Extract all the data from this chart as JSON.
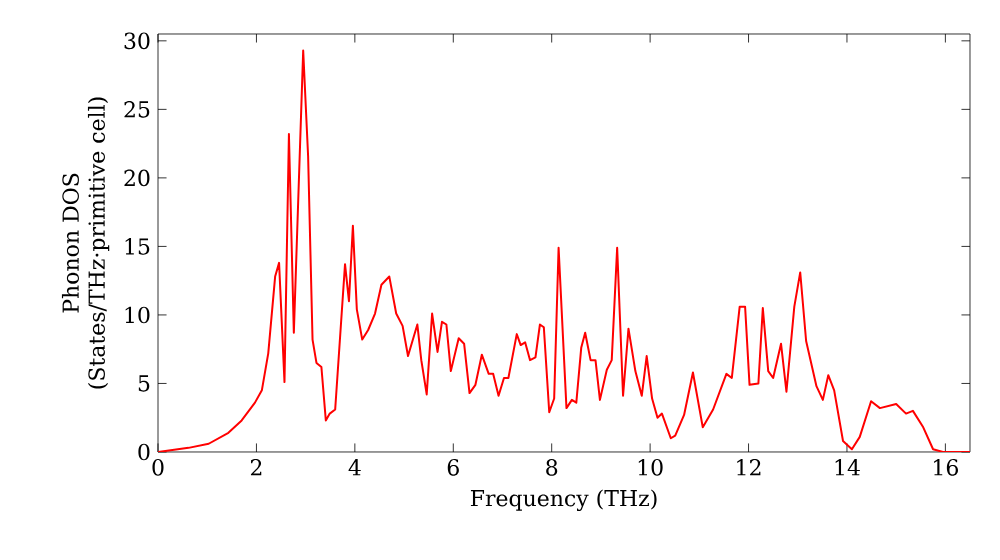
{
  "chart_data": {
    "type": "line",
    "xlabel": "Frequency (THz)",
    "ylabel": "Phonon DOS\n(States/THz·primitive cell)",
    "xlim": [
      0,
      16.5
    ],
    "ylim": [
      0,
      30.5
    ],
    "xticks": [
      0,
      2,
      4,
      6,
      8,
      10,
      12,
      14,
      16
    ],
    "yticks": [
      0,
      5,
      10,
      15,
      20,
      25,
      30
    ],
    "marker": "none",
    "line_style": "solid",
    "series": [
      {
        "color": "#ff0000",
        "x": [
          0,
          0.62,
          1.03,
          1.43,
          1.7,
          1.97,
          2.11,
          2.24,
          2.38,
          2.46,
          2.57,
          2.66,
          2.76,
          2.95,
          3.05,
          3.14,
          3.22,
          3.32,
          3.41,
          3.49,
          3.6,
          3.8,
          3.88,
          3.96,
          4.04,
          4.15,
          4.27,
          4.41,
          4.54,
          4.7,
          4.84,
          4.97,
          5.08,
          5.27,
          5.35,
          5.46,
          5.57,
          5.68,
          5.77,
          5.86,
          5.95,
          6.11,
          6.22,
          6.33,
          6.45,
          6.58,
          6.72,
          6.81,
          6.92,
          7.03,
          7.12,
          7.29,
          7.37,
          7.46,
          7.56,
          7.67,
          7.76,
          7.84,
          7.95,
          8.05,
          8.14,
          8.3,
          8.41,
          8.5,
          8.6,
          8.68,
          8.79,
          8.89,
          8.98,
          9.12,
          9.22,
          9.33,
          9.45,
          9.56,
          9.7,
          9.83,
          9.93,
          10.04,
          10.15,
          10.24,
          10.42,
          10.51,
          10.69,
          10.87,
          11.07,
          11.28,
          11.55,
          11.66,
          11.82,
          11.93,
          12.02,
          12.2,
          12.29,
          12.4,
          12.5,
          12.66,
          12.77,
          12.93,
          13.05,
          13.17,
          13.38,
          13.51,
          13.62,
          13.74,
          13.92,
          14.1,
          14.26,
          14.49,
          14.67,
          15.0,
          15.2,
          15.34,
          15.55,
          15.75,
          15.95,
          16.5
        ],
        "values": [
          0,
          0.3,
          0.6,
          1.4,
          2.3,
          3.6,
          4.5,
          7.2,
          12.8,
          13.8,
          5.1,
          23.2,
          8.7,
          29.3,
          21.6,
          8.2,
          6.5,
          6.2,
          2.3,
          2.8,
          3.1,
          13.7,
          11.0,
          16.5,
          10.4,
          8.2,
          8.9,
          10.1,
          12.2,
          12.8,
          10.1,
          9.2,
          7.0,
          9.3,
          6.7,
          4.2,
          10.1,
          7.3,
          9.5,
          9.3,
          5.9,
          8.3,
          7.9,
          4.3,
          4.9,
          7.1,
          5.7,
          5.7,
          4.1,
          5.4,
          5.4,
          8.6,
          7.8,
          8.0,
          6.7,
          6.9,
          9.3,
          9.1,
          2.9,
          3.9,
          14.9,
          3.2,
          3.8,
          3.6,
          7.6,
          8.7,
          6.7,
          6.7,
          3.8,
          6.0,
          6.7,
          14.9,
          4.1,
          9.0,
          5.9,
          4.1,
          7.0,
          3.9,
          2.5,
          2.8,
          1.0,
          1.2,
          2.7,
          5.8,
          1.8,
          3.1,
          5.7,
          5.4,
          10.6,
          10.6,
          4.9,
          5.0,
          10.5,
          5.9,
          5.4,
          7.9,
          4.4,
          10.6,
          13.1,
          8.1,
          4.8,
          3.8,
          5.6,
          4.5,
          0.8,
          0.2,
          1.1,
          3.7,
          3.2,
          3.5,
          2.8,
          3.0,
          1.8,
          0.2,
          0,
          0
        ]
      }
    ]
  }
}
